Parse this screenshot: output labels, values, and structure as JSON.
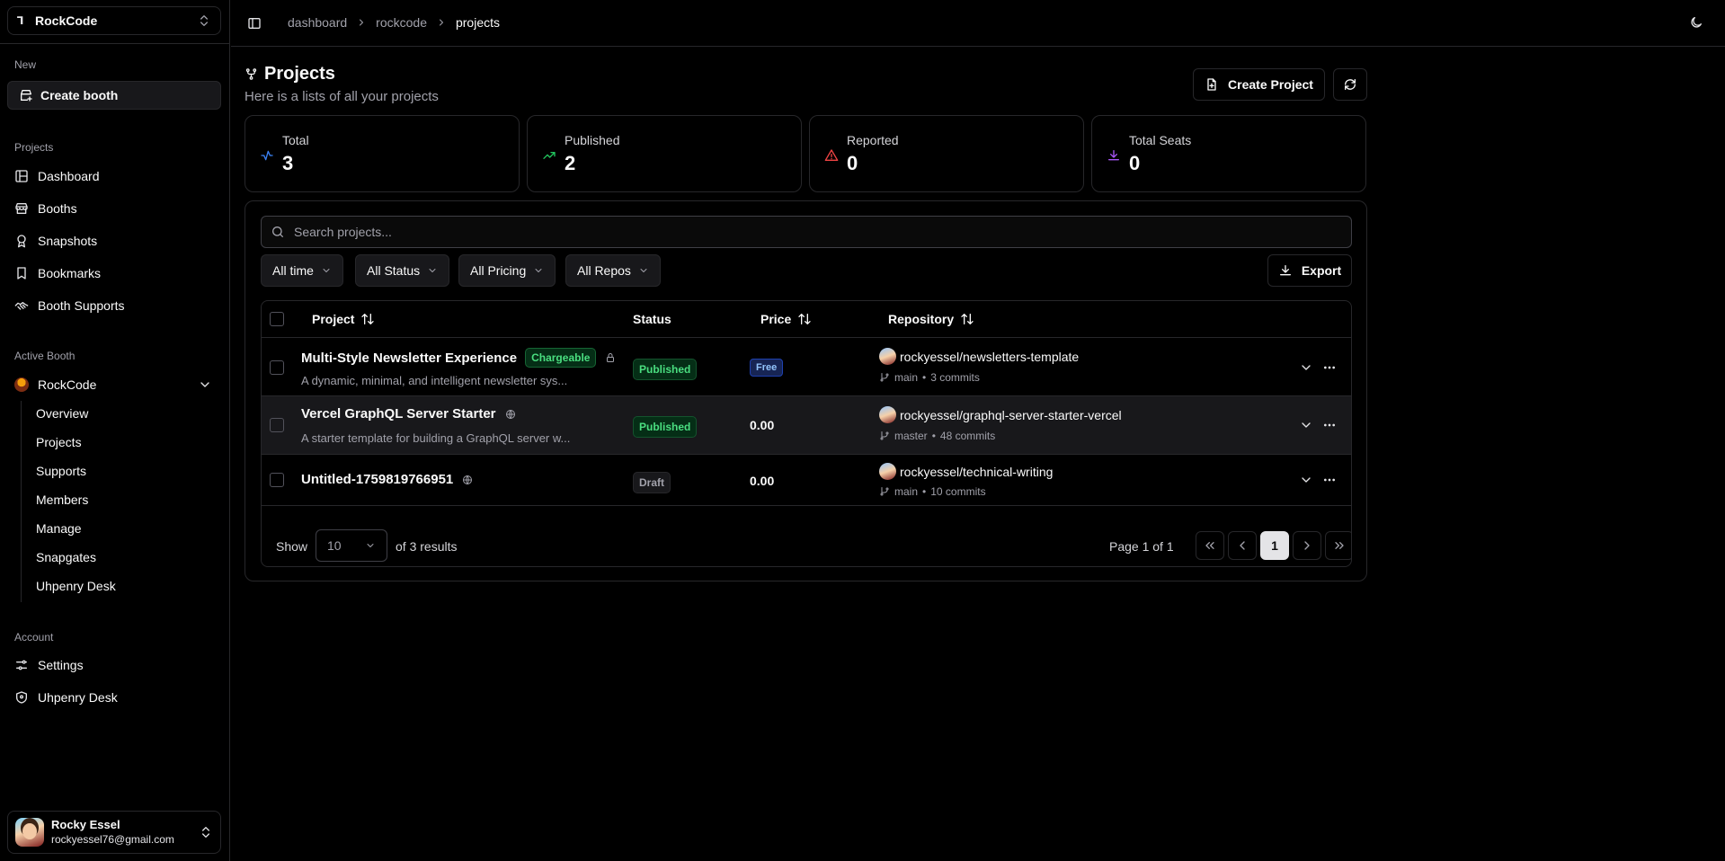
{
  "app": {
    "team_name": "RockCode"
  },
  "sidebar": {
    "new_label": "New",
    "create_label": "Create booth",
    "projects_label": "Projects",
    "nav": [
      {
        "label": "Dashboard",
        "icon": "dashboard-icon"
      },
      {
        "label": "Booths",
        "icon": "store-icon"
      },
      {
        "label": "Snapshots",
        "icon": "award-icon"
      },
      {
        "label": "Bookmarks",
        "icon": "bookmark-icon"
      },
      {
        "label": "Booth Supports",
        "icon": "handshake-icon"
      }
    ],
    "active_booth_label": "Active Booth",
    "active_booth_name": "RockCode",
    "booth_subnav": [
      "Overview",
      "Projects",
      "Supports",
      "Members",
      "Manage",
      "Snapgates",
      "Uhpenry Desk"
    ],
    "account_label": "Account",
    "account_nav": [
      {
        "label": "Settings",
        "icon": "settings-sliders-icon"
      },
      {
        "label": "Uhpenry Desk",
        "icon": "shield-icon"
      }
    ],
    "user": {
      "name": "Rocky Essel",
      "email": "rockyessel76@gmail.com"
    }
  },
  "header": {
    "breadcrumbs": [
      "dashboard",
      "rockcode",
      "projects"
    ]
  },
  "page": {
    "title": "Projects",
    "subtitle": "Here is a lists of all your projects",
    "create_button": "Create Project"
  },
  "stats": [
    {
      "label": "Total",
      "value": "3",
      "color": "#3b82f6",
      "icon": "activity-icon"
    },
    {
      "label": "Published",
      "value": "2",
      "color": "#22c55e",
      "icon": "trending-up-icon"
    },
    {
      "label": "Reported",
      "value": "0",
      "color": "#ef4444",
      "icon": "warning-icon"
    },
    {
      "label": "Total Seats",
      "value": "0",
      "color": "#a855f7",
      "icon": "download-icon"
    }
  ],
  "search": {
    "placeholder": "Search projects..."
  },
  "filters": [
    "All time",
    "All Status",
    "All Pricing",
    "All Repos"
  ],
  "export_label": "Export",
  "table": {
    "columns": [
      "Project",
      "Status",
      "Price",
      "Repository"
    ],
    "rows": [
      {
        "title": "Multi-Style Newsletter Experience",
        "tag": "Chargeable",
        "desc": "A dynamic, minimal, and intelligent newsletter sys...",
        "status": "Published",
        "price": "Free",
        "repo": "rockyessel/newsletters-template",
        "branch": "main",
        "commits": "3 commits"
      },
      {
        "title": "Vercel GraphQL Server Starter",
        "tag": "",
        "desc": "A starter template for building a GraphQL server w...",
        "status": "Published",
        "price": "0.00",
        "repo": "rockyessel/graphql-server-starter-vercel",
        "branch": "master",
        "commits": "48 commits"
      },
      {
        "title": "Untitled-1759819766951",
        "tag": "",
        "desc": "",
        "status": "Draft",
        "price": "0.00",
        "repo": "rockyessel/technical-writing",
        "branch": "main",
        "commits": "10 commits"
      }
    ]
  },
  "pagination": {
    "show_label": "Show",
    "page_size": "10",
    "results_label": "of 3 results",
    "page_label": "Page 1 of 1",
    "current_page": "1"
  }
}
